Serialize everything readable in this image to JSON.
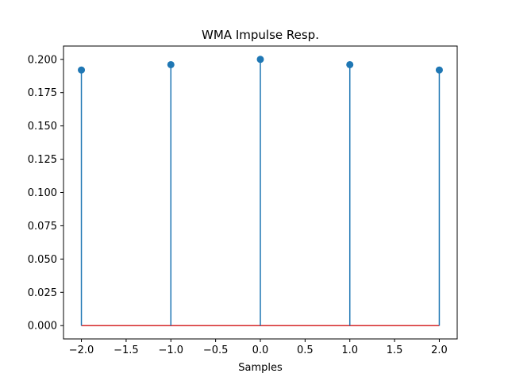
{
  "chart_data": {
    "type": "stem",
    "title": "WMA Impulse Resp.",
    "xlabel": "Samples",
    "ylabel": "",
    "x": [
      -2,
      -1,
      0,
      1,
      2
    ],
    "values": [
      0.192,
      0.196,
      0.2,
      0.196,
      0.192
    ],
    "xlim": [
      -2.2,
      2.2
    ],
    "ylim": [
      -0.01,
      0.21
    ],
    "x_ticks": [
      "−2.0",
      "−1.5",
      "−1.0",
      "−0.5",
      "0.0",
      "0.5",
      "1.0",
      "1.5",
      "2.0"
    ],
    "x_tick_values": [
      -2.0,
      -1.5,
      -1.0,
      -0.5,
      0.0,
      0.5,
      1.0,
      1.5,
      2.0
    ],
    "y_ticks": [
      "0.000",
      "0.025",
      "0.050",
      "0.075",
      "0.100",
      "0.125",
      "0.150",
      "0.175",
      "0.200"
    ],
    "y_tick_values": [
      0.0,
      0.025,
      0.05,
      0.075,
      0.1,
      0.125,
      0.15,
      0.175,
      0.2
    ],
    "grid": false,
    "colors": {
      "stem": "#1f77b4",
      "baseline": "#d62728"
    }
  }
}
